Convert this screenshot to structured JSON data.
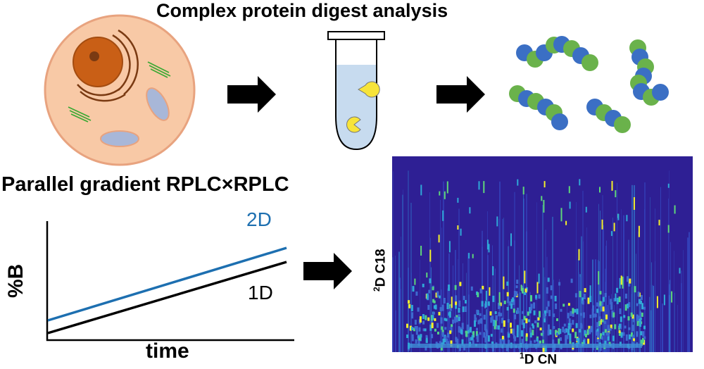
{
  "title": "Complex protein digest analysis",
  "section2_title": "Parallel gradient RPLC×RPLC",
  "gradient_plot": {
    "y_label": "%B",
    "x_label": "time",
    "lines": [
      {
        "name": "2D",
        "color": "#1d6fb0"
      },
      {
        "name": "1D",
        "color": "#000000"
      }
    ]
  },
  "heatmap": {
    "y_label_sup": "2",
    "y_label_text": "D C18",
    "x_label_sup": "1",
    "x_label_text": "D CN"
  },
  "colors": {
    "cell": "#f8c9a6",
    "nucleus": "#c95f16",
    "organelle": "#a8b7d8",
    "peptide_blue": "#3b6fc4",
    "peptide_green": "#6ab24b",
    "tube_liquid": "#c7dbef",
    "enzyme": "#f7e43a"
  }
}
